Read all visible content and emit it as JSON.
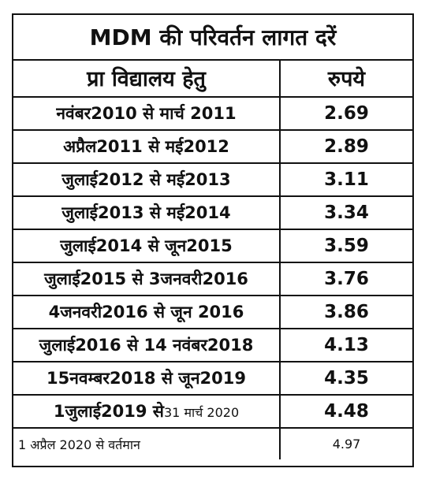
{
  "title": "MDM की परिवर्तन लागत दरें",
  "header": {
    "col_school": "प्रा विद्यालय हेतु",
    "col_rupees": "रुपये"
  },
  "rows": [
    {
      "period": "नवंबर2010 से मार्च 2011",
      "rate": "2.69"
    },
    {
      "period": "अप्रैल2011 से मई2012",
      "rate": "2.89"
    },
    {
      "period": "जुलाई2012 से मई2013",
      "rate": "3.11"
    },
    {
      "period": "जुलाई2013 से मई2014",
      "rate": "3.34"
    },
    {
      "period": "जुलाई2014 से जून2015",
      "rate": "3.59"
    },
    {
      "period": "जुलाई2015 से 3जनवरी2016",
      "rate": "3.76"
    },
    {
      "period": "4जनवरी2016 से जून 2016",
      "rate": "3.86"
    },
    {
      "period": "जुलाई2016 से 14 नवंबर2018",
      "rate": "4.13"
    },
    {
      "period": "15नवम्बर2018 से जून2019",
      "rate": "4.35"
    },
    {
      "period_main": "1जुलाई2019 से",
      "period_small": "31 मार्च 2020",
      "rate": "4.48"
    },
    {
      "period": "1 अप्रैल 2020 से वर्तमान",
      "rate": "4.97"
    }
  ]
}
